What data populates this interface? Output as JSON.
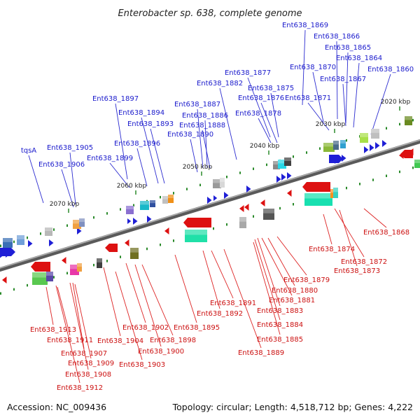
{
  "title": "Enterobacter sp. 638, complete genome",
  "footer": {
    "accession": "Accession: NC_009436",
    "topology": "Topology: circular; Length: 4,518,712 bp; Genes: 4,222"
  },
  "colors": {
    "forward": "#1f1fd6",
    "reverse": "#dd1111",
    "axis": "#777777",
    "tick": "#2a8a2a"
  },
  "scale_ticks": [
    "2020 kbp",
    "2030 kbp",
    "2040 kbp",
    "2050 kbp",
    "2060 kbp",
    "2070 kbp"
  ],
  "top_labels": [
    "Ent638_1869",
    "Ent638_1866",
    "Ent638_1865",
    "Ent638_1864",
    "Ent638_1860",
    "Ent638_1870",
    "Ent638_1867",
    "Ent638_1877",
    "Ent638_1882",
    "Ent638_1875",
    "Ent638_1876",
    "Ent638_1871",
    "Ent638_1897",
    "Ent638_1887",
    "Ent638_1894",
    "Ent638_1886",
    "Ent638_1878",
    "Ent638_1893",
    "Ent638_1888",
    "Ent638_1890",
    "Ent638_1896",
    "tqsA",
    "Ent638_1905",
    "Ent638_1899",
    "Ent638_1906"
  ],
  "bottom_labels": [
    "Ent638_1868",
    "Ent638_1874",
    "Ent638_1872",
    "Ent638_1873",
    "Ent638_1879",
    "Ent638_1880",
    "Ent638_1881",
    "Ent638_1891",
    "Ent638_1883",
    "Ent638_1892",
    "Ent638_1884",
    "Ent638_1895",
    "Ent638_1902",
    "Ent638_1885",
    "Ent638_1913",
    "Ent638_1898",
    "Ent638_1911",
    "Ent638_1904",
    "Ent638_1900",
    "Ent638_1907",
    "Ent638_1889",
    "Ent638_1909",
    "Ent638_1903",
    "Ent638_1908",
    "Ent638_1912"
  ]
}
